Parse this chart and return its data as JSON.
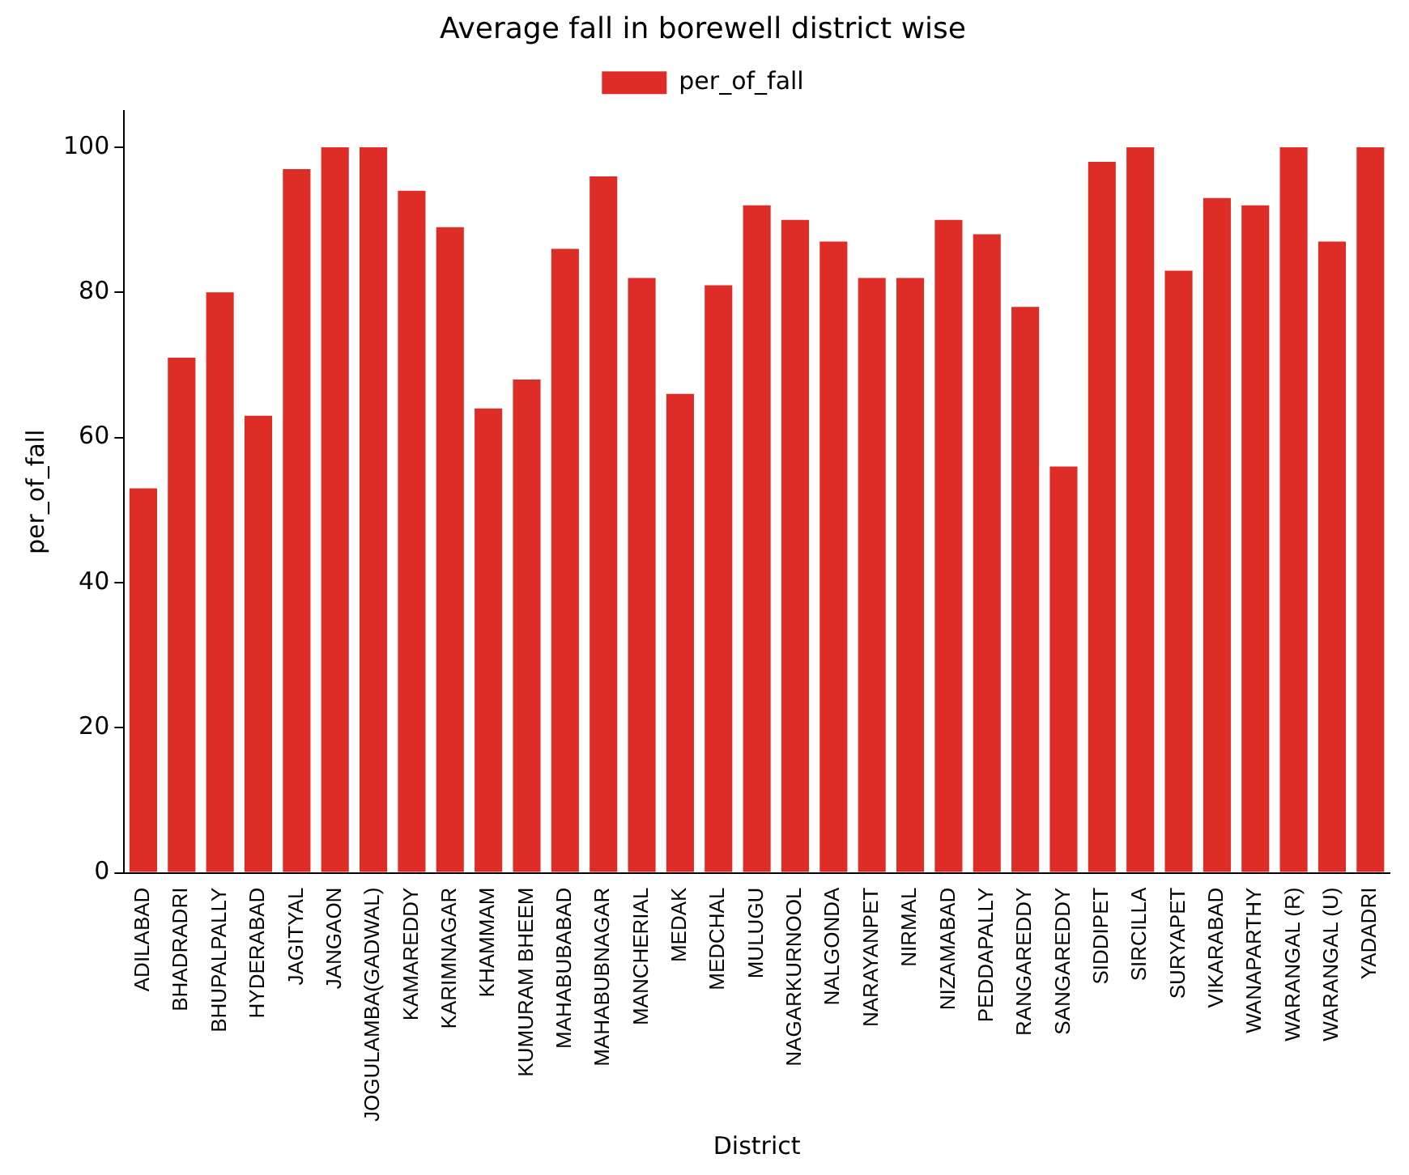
{
  "chart_data": {
    "type": "bar",
    "title": "Average fall in borewell district wise",
    "xlabel": "District",
    "ylabel": "per_of_fall",
    "categories": [
      "ADILABAD",
      "BHADRADRI",
      "BHUPALPALLY",
      "HYDERABAD",
      "JAGITYAL",
      "JANGAON",
      "JOGULAMBA(GADWAL)",
      "KAMAREDDY",
      "KARIMNAGAR",
      "KHAMMAM",
      "KUMURAM BHEEM",
      "MAHABUBABAD",
      "MAHABUBNAGAR",
      "MANCHERIAL",
      "MEDAK",
      "MEDCHAL",
      "MULUGU",
      "NAGARKURNOOL",
      "NALGONDA",
      "NARAYANPET",
      "NIRMAL",
      "NIZAMABAD",
      "PEDDAPALLY",
      "RANGAREDDY",
      "SANGAREDDY",
      "SIDDIPET",
      "SIRCILLA",
      "SURYAPET",
      "VIKARABAD",
      "WANAPARTHY",
      "WARANGAL (R)",
      "WARANGAL (U)",
      "YADADRI"
    ],
    "series": [
      {
        "name": "per_of_fall",
        "color": "#de2d26",
        "values": [
          53,
          71,
          80,
          63,
          97,
          100,
          100,
          94,
          89,
          64,
          68,
          86,
          96,
          82,
          66,
          81,
          92,
          90,
          87,
          82,
          82,
          90,
          88,
          78,
          56,
          98,
          100,
          83,
          93,
          92,
          100,
          87,
          100
        ]
      }
    ],
    "ylim": [
      0,
      105
    ],
    "yticks": [
      0,
      20,
      40,
      60,
      80,
      100
    ],
    "grid": false,
    "legend": "top"
  }
}
